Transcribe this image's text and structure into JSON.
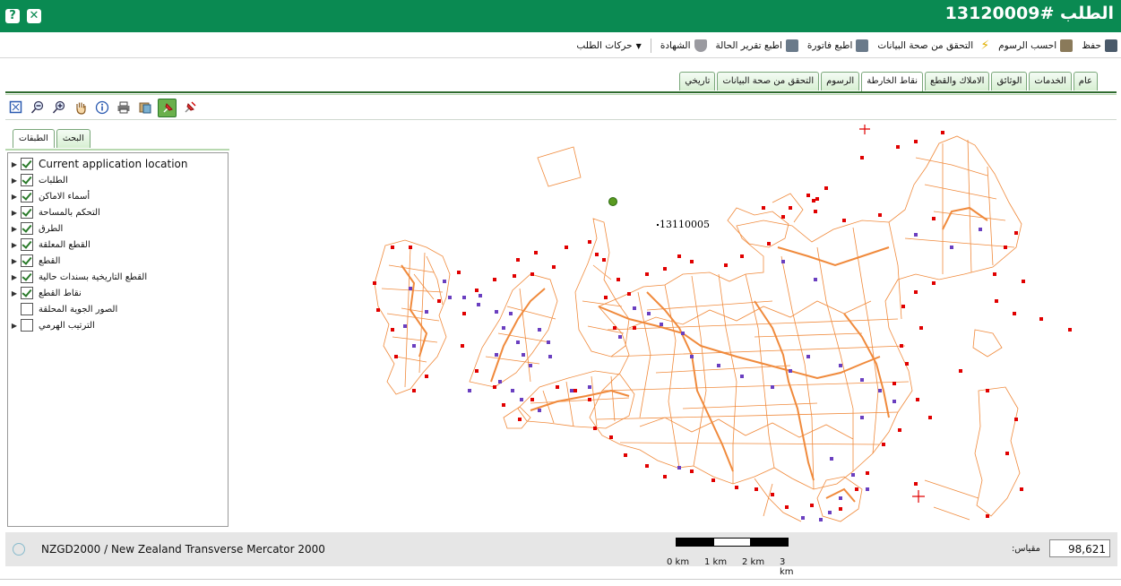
{
  "window": {
    "title": "الطلب #13120009"
  },
  "toolbar": {
    "save": "حفظ",
    "calc_fees": "احسب الرسوم",
    "validate": "التحقق من صحة البيانات",
    "print_invoice": "اطبع فاتورة",
    "print_status": "اطبع تقرير الحالة",
    "certificate": "الشهادة",
    "actions": "حركات الطلب"
  },
  "tabs": [
    "عام",
    "الخدمات",
    "الوثائق",
    "الاملاك والقطع",
    "نقاط الخارطة",
    "الرسوم",
    "التحقق من صحة البيانات",
    "تاريخي"
  ],
  "active_tab": "نقاط الخارطة",
  "panel_tabs": [
    "الطبقات",
    "البحث"
  ],
  "layers": [
    {
      "name": "Current application location",
      "checked": true,
      "expand": true
    },
    {
      "name": "الطلبات",
      "checked": true,
      "expand": true
    },
    {
      "name": "أسماء الاماكن",
      "checked": true,
      "expand": true
    },
    {
      "name": "التحكم بالمساحة",
      "checked": true,
      "expand": true
    },
    {
      "name": "الطرق",
      "checked": true,
      "expand": true
    },
    {
      "name": "القطع المعلقة",
      "checked": true,
      "expand": true
    },
    {
      "name": "القطع",
      "checked": true,
      "expand": true
    },
    {
      "name": "القطع التاريخية بسندات حالية",
      "checked": true,
      "expand": true
    },
    {
      "name": "نقاط القطع",
      "checked": true,
      "expand": true
    },
    {
      "name": "الصور الجوية المحلقة",
      "checked": false,
      "expand": false
    },
    {
      "name": "الترتيب الهرمي",
      "checked": false,
      "expand": true
    }
  ],
  "map": {
    "label": "13110005"
  },
  "status": {
    "crs": "NZGD2000 / New Zealand Transverse Mercator 2000",
    "scale_label": "مقياس:",
    "scale_value": "98,621",
    "scale_ticks": [
      "0 km",
      "1 km",
      "2 km",
      "3 km"
    ]
  },
  "colors": {
    "header": "#0a8a52",
    "parcel": "#f08a3c",
    "point_red": "#e00000",
    "point_purple": "#6a3fc0"
  }
}
